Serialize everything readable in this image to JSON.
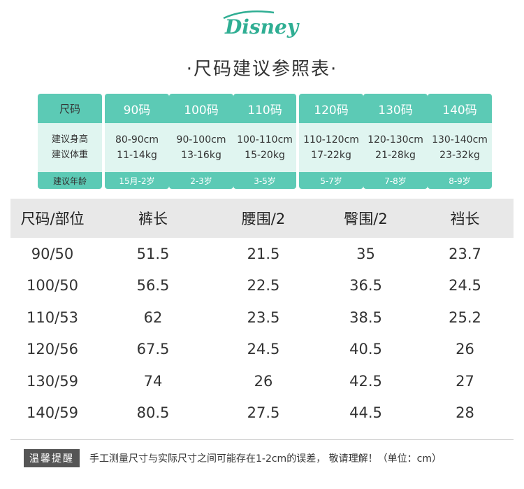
{
  "brand": {
    "logo_text": "Disney",
    "color": "#2fae93"
  },
  "title": "·尺码建议参照表·",
  "suggestion": {
    "header_label": "尺码",
    "height_label": "建议身高",
    "weight_label": "建议体重",
    "age_label": "建议年龄",
    "columns": [
      {
        "size": "90码",
        "height": "80-90cm",
        "weight": "11-14kg",
        "age": "15月-2岁"
      },
      {
        "size": "100码",
        "height": "90-100cm",
        "weight": "13-16kg",
        "age": "2-3岁"
      },
      {
        "size": "110码",
        "height": "100-110cm",
        "weight": "15-20kg",
        "age": "3-5岁"
      },
      {
        "size": "120码",
        "height": "110-120cm",
        "weight": "17-22kg",
        "age": "5-7岁"
      },
      {
        "size": "130码",
        "height": "120-130cm",
        "weight": "21-28kg",
        "age": "7-8岁"
      },
      {
        "size": "140码",
        "height": "130-140cm",
        "weight": "23-32kg",
        "age": "8-9岁"
      }
    ]
  },
  "measure": {
    "headers": [
      "尺码/部位",
      "裤长",
      "腰围/2",
      "臀围/2",
      "裆长"
    ],
    "rows": [
      [
        "90/50",
        "51.5",
        "21.5",
        "35",
        "23.7"
      ],
      [
        "100/50",
        "56.5",
        "22.5",
        "36.5",
        "24.5"
      ],
      [
        "110/53",
        "62",
        "23.5",
        "38.5",
        "25.2"
      ],
      [
        "120/56",
        "67.5",
        "24.5",
        "40.5",
        "26"
      ],
      [
        "130/59",
        "74",
        "26",
        "42.5",
        "27"
      ],
      [
        "140/59",
        "80.5",
        "27.5",
        "44.5",
        "28"
      ]
    ]
  },
  "notice": {
    "badge": "温馨提醒",
    "text": "手工测量尺寸与实际尺寸之间可能存在1-2cm的误差， 敬请理解！（单位：cm）"
  }
}
